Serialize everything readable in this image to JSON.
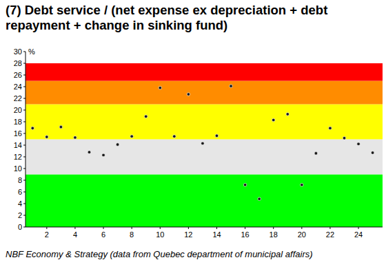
{
  "chart_data": {
    "type": "scatter",
    "title": "(7) Debt service / (net expense ex depreciation + debt repayment + change in sinking fund)",
    "y_label": "%",
    "source": "NBF Economy & Strategy (data from Quebec department of municipal affairs)",
    "x": [
      1,
      2,
      3,
      4,
      5,
      6,
      7,
      8,
      9,
      10,
      11,
      12,
      13,
      14,
      15,
      16,
      17,
      18,
      19,
      20,
      21,
      22,
      23,
      24,
      25
    ],
    "values": [
      16.9,
      15.4,
      17.1,
      15.3,
      12.8,
      12.3,
      14.1,
      15.5,
      18.9,
      23.8,
      15.5,
      22.7,
      14.3,
      15.6,
      24.1,
      7.2,
      4.8,
      18.3,
      19.3,
      7.2,
      12.6,
      16.9,
      15.2,
      14.2,
      12.7
    ],
    "color": "#1a1a1a",
    "marker": "circle",
    "bands": [
      {
        "from": 0,
        "to": 9,
        "color": "#00ff00"
      },
      {
        "from": 9,
        "to": 15,
        "color": "#e6e6e6"
      },
      {
        "from": 15,
        "to": 21,
        "color": "#ffff00"
      },
      {
        "from": 21,
        "to": 25,
        "color": "#ff8c00"
      },
      {
        "from": 25,
        "to": 28,
        "color": "#ff0000"
      }
    ],
    "xlim": [
      0.5,
      25.7
    ],
    "xticks": [
      2,
      4,
      6,
      8,
      10,
      12,
      14,
      16,
      18,
      20,
      22,
      24
    ],
    "ylim": [
      0,
      30
    ],
    "yticks": [
      0,
      2,
      4,
      6,
      8,
      10,
      12,
      14,
      16,
      18,
      20,
      22,
      24,
      26,
      28,
      30
    ],
    "grid": false
  }
}
